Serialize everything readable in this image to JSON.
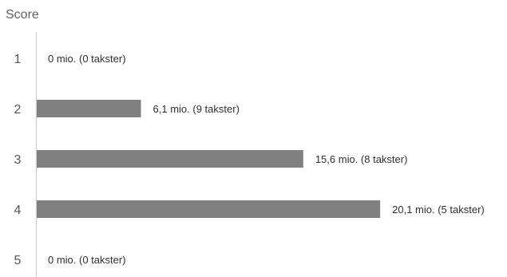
{
  "chart_data": {
    "type": "bar",
    "orientation": "horizontal",
    "title": "Score",
    "categories": [
      "1",
      "2",
      "3",
      "4",
      "5"
    ],
    "values": [
      0,
      6.1,
      15.6,
      20.1,
      0
    ],
    "value_labels": [
      "0 mio. (0 takster)",
      "6,1 mio. (9 takster)",
      "15,6 mio. (8 takster)",
      "20,1 mio. (5 takster)",
      "0 mio. (0 takster)"
    ],
    "bar_color": "#808080",
    "grid": false,
    "legend": "none"
  }
}
